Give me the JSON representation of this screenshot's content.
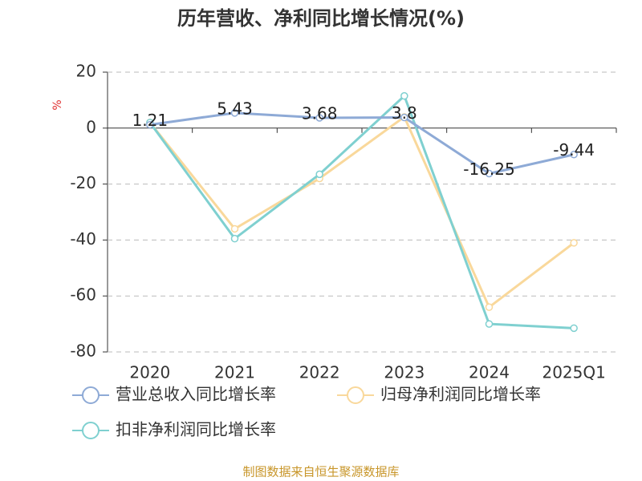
{
  "chart_data": {
    "type": "line",
    "title": "历年营收、净利同比增长情况(%)",
    "y_label": "%",
    "categories": [
      "2020",
      "2021",
      "2022",
      "2023",
      "2024",
      "2025Q1"
    ],
    "series": [
      {
        "name": "营业总收入同比增长率",
        "color": "#8eaad6",
        "values": [
          1.21,
          5.43,
          3.68,
          3.8,
          -16.25,
          -9.44
        ],
        "show_labels": true
      },
      {
        "name": "归母净利润同比增长率",
        "color": "#f9d89b",
        "values": [
          2,
          -36,
          -18,
          4,
          -64,
          -41
        ],
        "show_labels": false
      },
      {
        "name": "扣非净利润同比增长率",
        "color": "#7fd0d0",
        "values": [
          2,
          -39.5,
          -16.5,
          11.5,
          -70,
          -71.5
        ],
        "show_labels": false
      }
    ],
    "ylim": [
      -80,
      20
    ],
    "yticks": [
      -80,
      -60,
      -40,
      -20,
      0,
      20
    ],
    "grid": true,
    "source": "制图数据来自恒生聚源数据库"
  }
}
